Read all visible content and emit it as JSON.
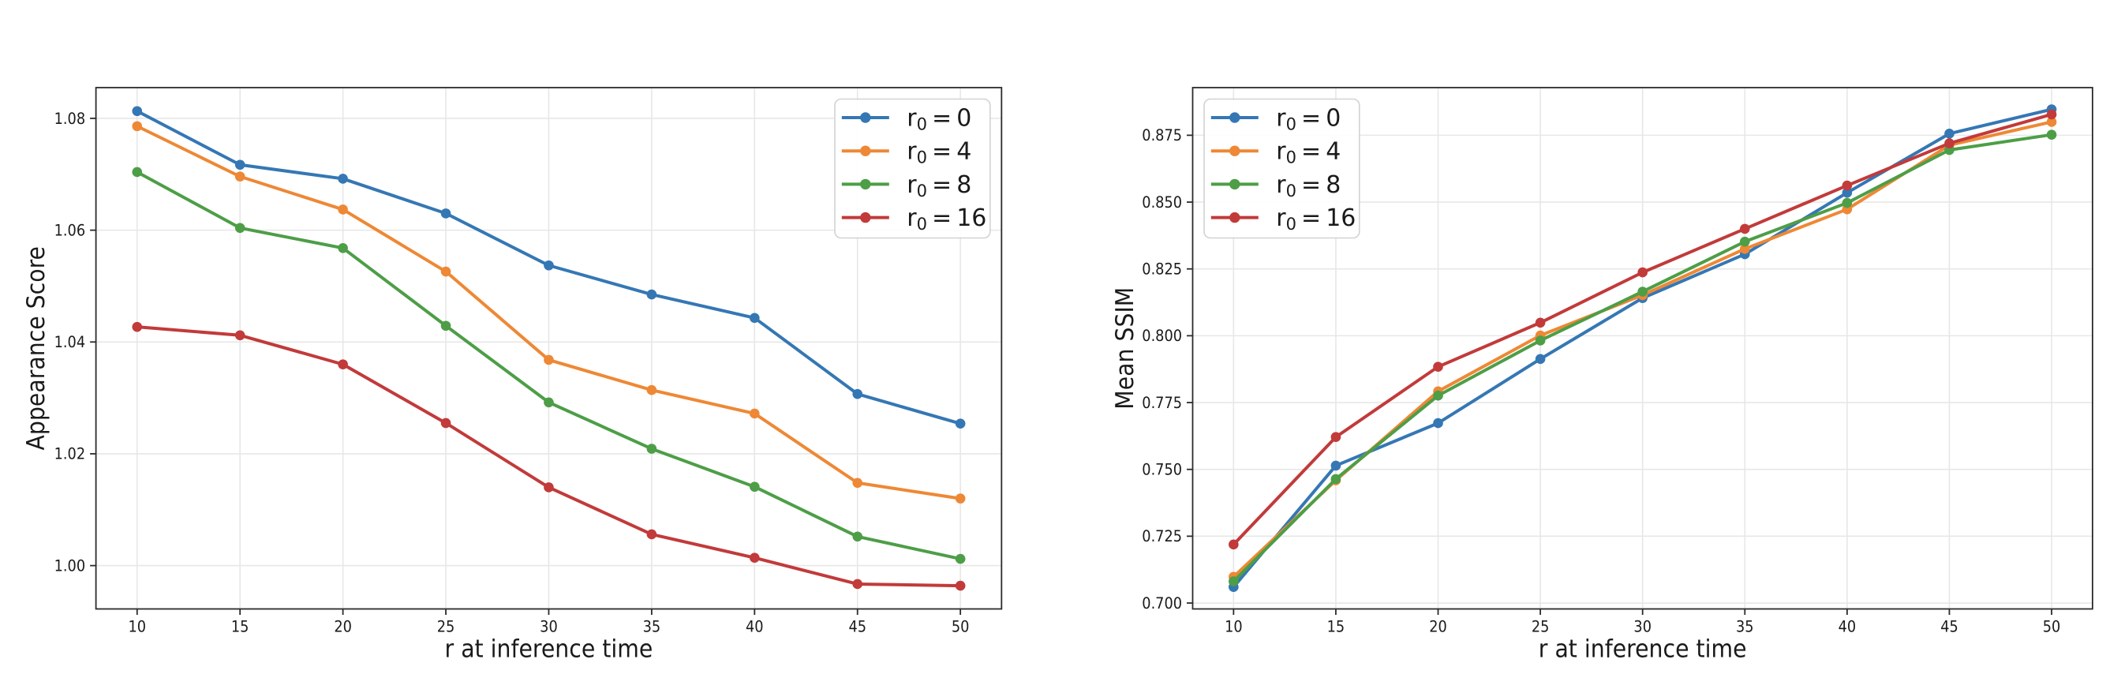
{
  "figure": {
    "background": "#ffffff"
  },
  "colors": {
    "series": [
      "#3577b4",
      "#ee8835",
      "#4d9e47",
      "#c23a3a"
    ],
    "grid": "#e7e7e7",
    "spine": "#2b2b2b",
    "tick": "#2b2b2b",
    "text": "#1a1a1a",
    "legend_border": "#d2d2d2",
    "legend_background": "#ffffff"
  },
  "chart_data": [
    {
      "type": "line",
      "title": "",
      "xlabel": "r at inference time",
      "ylabel": "Appearance Score",
      "x": [
        10,
        15,
        20,
        25,
        30,
        35,
        40,
        45,
        50
      ],
      "xtick_labels": [
        "10",
        "15",
        "20",
        "25",
        "30",
        "35",
        "40",
        "45",
        "50"
      ],
      "yticks": [
        1.0,
        1.02,
        1.04,
        1.06,
        1.08
      ],
      "ytick_labels": [
        "1.00",
        "1.02",
        "1.04",
        "1.06",
        "1.08"
      ],
      "xlim": [
        8,
        52
      ],
      "ylim": [
        0.99225,
        1.0855
      ],
      "grid": true,
      "legend_position": "upper right",
      "series": [
        {
          "name": "r₀ = 0",
          "values": [
            1.0813,
            1.0717,
            1.0692,
            1.063,
            1.0537,
            1.0485,
            1.0443,
            1.0307,
            1.0254
          ]
        },
        {
          "name": "r₀ = 4",
          "values": [
            1.0786,
            1.0696,
            1.0637,
            1.0526,
            1.0368,
            1.0314,
            1.0272,
            1.0148,
            1.012
          ]
        },
        {
          "name": "r₀ = 8",
          "values": [
            1.0704,
            1.0604,
            1.0568,
            1.0429,
            1.0292,
            1.0209,
            1.0141,
            1.0052,
            1.0012
          ]
        },
        {
          "name": "r₀ = 16",
          "values": [
            1.0427,
            1.0412,
            1.036,
            1.0255,
            1.014,
            1.0056,
            1.0014,
            0.9967,
            0.9964
          ]
        }
      ]
    },
    {
      "type": "line",
      "title": "",
      "xlabel": "r at inference time",
      "ylabel": "Mean SSIM",
      "x": [
        10,
        15,
        20,
        25,
        30,
        35,
        40,
        45,
        50
      ],
      "xtick_labels": [
        "10",
        "15",
        "20",
        "25",
        "30",
        "35",
        "40",
        "45",
        "50"
      ],
      "yticks": [
        0.7,
        0.725,
        0.75,
        0.775,
        0.8,
        0.825,
        0.85,
        0.875
      ],
      "ytick_labels": [
        "0.700",
        "0.725",
        "0.750",
        "0.775",
        "0.800",
        "0.825",
        "0.850",
        "0.875"
      ],
      "xlim": [
        8,
        52
      ],
      "ylim": [
        0.69779,
        0.89283
      ],
      "grid": true,
      "legend_position": "upper left",
      "series": [
        {
          "name": "r₀ = 0",
          "values": [
            0.706,
            0.7514,
            0.7673,
            0.7913,
            0.8141,
            0.8305,
            0.8535,
            0.8756,
            0.8847
          ]
        },
        {
          "name": "r₀ = 4",
          "values": [
            0.7098,
            0.7459,
            0.7792,
            0.8001,
            0.8152,
            0.8325,
            0.8473,
            0.8713,
            0.88
          ]
        },
        {
          "name": "r₀ = 8",
          "values": [
            0.7081,
            0.7464,
            0.7776,
            0.7982,
            0.8165,
            0.8352,
            0.8497,
            0.8695,
            0.8752
          ]
        },
        {
          "name": "r₀ = 16",
          "values": [
            0.7219,
            0.7621,
            0.7884,
            0.8049,
            0.8237,
            0.84,
            0.8562,
            0.872,
            0.8828
          ]
        }
      ]
    }
  ]
}
